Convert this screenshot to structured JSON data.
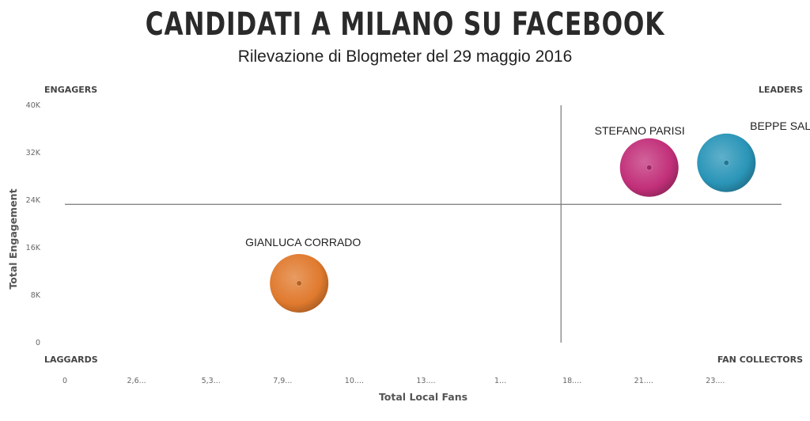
{
  "header": {
    "title": "CANDIDATI A MILANO SU FACEBOOK",
    "subtitle": "Rilevazione di Blogmeter del 29 maggio 2016"
  },
  "chart_data": {
    "type": "scatter",
    "title": "CANDIDATI A MILANO SU FACEBOOK",
    "subtitle": "Rilevazione di Blogmeter del 29 maggio 2016",
    "xlabel": "Total Local Fans",
    "ylabel": "Total Engagement",
    "xlim": [
      0,
      26000
    ],
    "ylim": [
      0,
      40000
    ],
    "x_ticks": [
      0,
      2600,
      5300,
      7900,
      10500,
      13100,
      15800,
      18400,
      21000,
      23600
    ],
    "x_tick_labels": [
      "0",
      "2,6...",
      "5,3...",
      "7,9...",
      "10....",
      "13....",
      "1...",
      "18....",
      "21....",
      "23...."
    ],
    "y_ticks": [
      0,
      8000,
      16000,
      24000,
      32000,
      40000
    ],
    "y_tick_labels": [
      "0",
      "8K",
      "16K",
      "24K",
      "32K",
      "40K"
    ],
    "grid": false,
    "quadrant_dividers": {
      "x": 18000,
      "y": 23300
    },
    "quadrant_labels": {
      "top_left": "ENGAGERS",
      "top_right": "LEADERS",
      "bottom_left": "LAGGARDS",
      "bottom_right": "FAN COLLECTORS"
    },
    "points": [
      {
        "label": "GIANLUCA CORRADO",
        "x": 8500,
        "y": 10000,
        "color": "#e07a2e"
      },
      {
        "label": "STEFANO PARISI",
        "x": 21200,
        "y": 29500,
        "color": "#c2307a"
      },
      {
        "label": "BEPPE SALA",
        "x": 24000,
        "y": 30300,
        "color": "#2a95b8"
      }
    ]
  }
}
